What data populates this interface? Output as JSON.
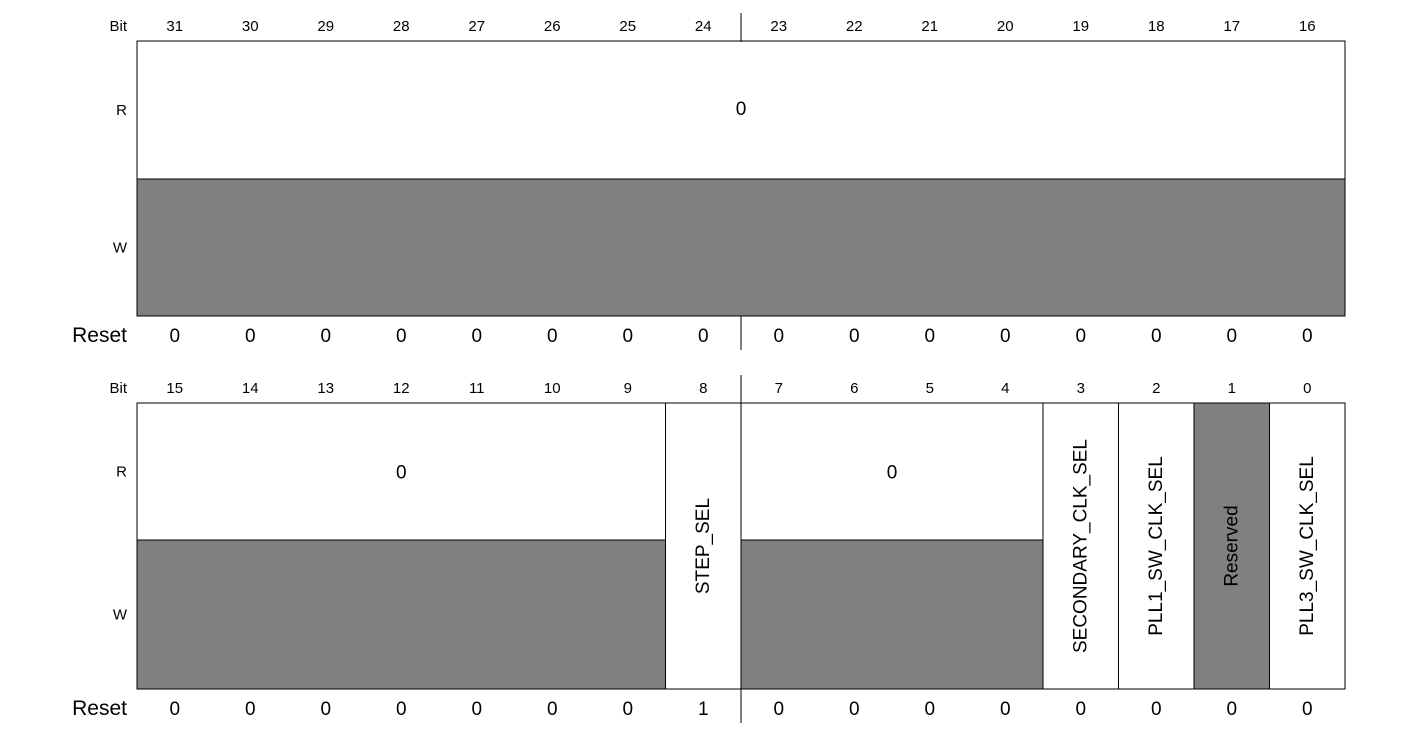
{
  "labels": {
    "bit": "Bit",
    "read": "R",
    "write": "W",
    "reset": "Reset"
  },
  "colors": {
    "background": "#ffffff",
    "reserved_fill": "#808080",
    "stroke": "#000000"
  },
  "upper_half": {
    "bit_numbers": [
      "31",
      "30",
      "29",
      "28",
      "27",
      "26",
      "25",
      "24",
      "23",
      "22",
      "21",
      "20",
      "19",
      "18",
      "17",
      "16"
    ],
    "read_value": "0",
    "reset_values": [
      "0",
      "0",
      "0",
      "0",
      "0",
      "0",
      "0",
      "0",
      "0",
      "0",
      "0",
      "0",
      "0",
      "0",
      "0",
      "0"
    ]
  },
  "lower_half": {
    "bit_numbers": [
      "15",
      "14",
      "13",
      "12",
      "11",
      "10",
      "9",
      "8",
      "7",
      "6",
      "5",
      "4",
      "3",
      "2",
      "1",
      "0"
    ],
    "reset_values": [
      "0",
      "0",
      "0",
      "0",
      "0",
      "0",
      "0",
      "1",
      "0",
      "0",
      "0",
      "0",
      "0",
      "0",
      "0",
      "0"
    ],
    "fields": [
      {
        "name": "",
        "msb": 15,
        "lsb": 9,
        "read_value": "0",
        "write_reserved": true
      },
      {
        "name": "STEP_SEL",
        "msb": 8,
        "lsb": 8
      },
      {
        "name": "",
        "msb": 7,
        "lsb": 4,
        "read_value": "0",
        "write_reserved": true
      },
      {
        "name": "SECONDARY_CLK_SEL",
        "msb": 3,
        "lsb": 3
      },
      {
        "name": "PLL1_SW_CLK_SEL",
        "msb": 2,
        "lsb": 2
      },
      {
        "name": "Reserved",
        "msb": 1,
        "lsb": 1,
        "reserved": true
      },
      {
        "name": "PLL3_SW_CLK_SEL",
        "msb": 0,
        "lsb": 0
      }
    ]
  }
}
